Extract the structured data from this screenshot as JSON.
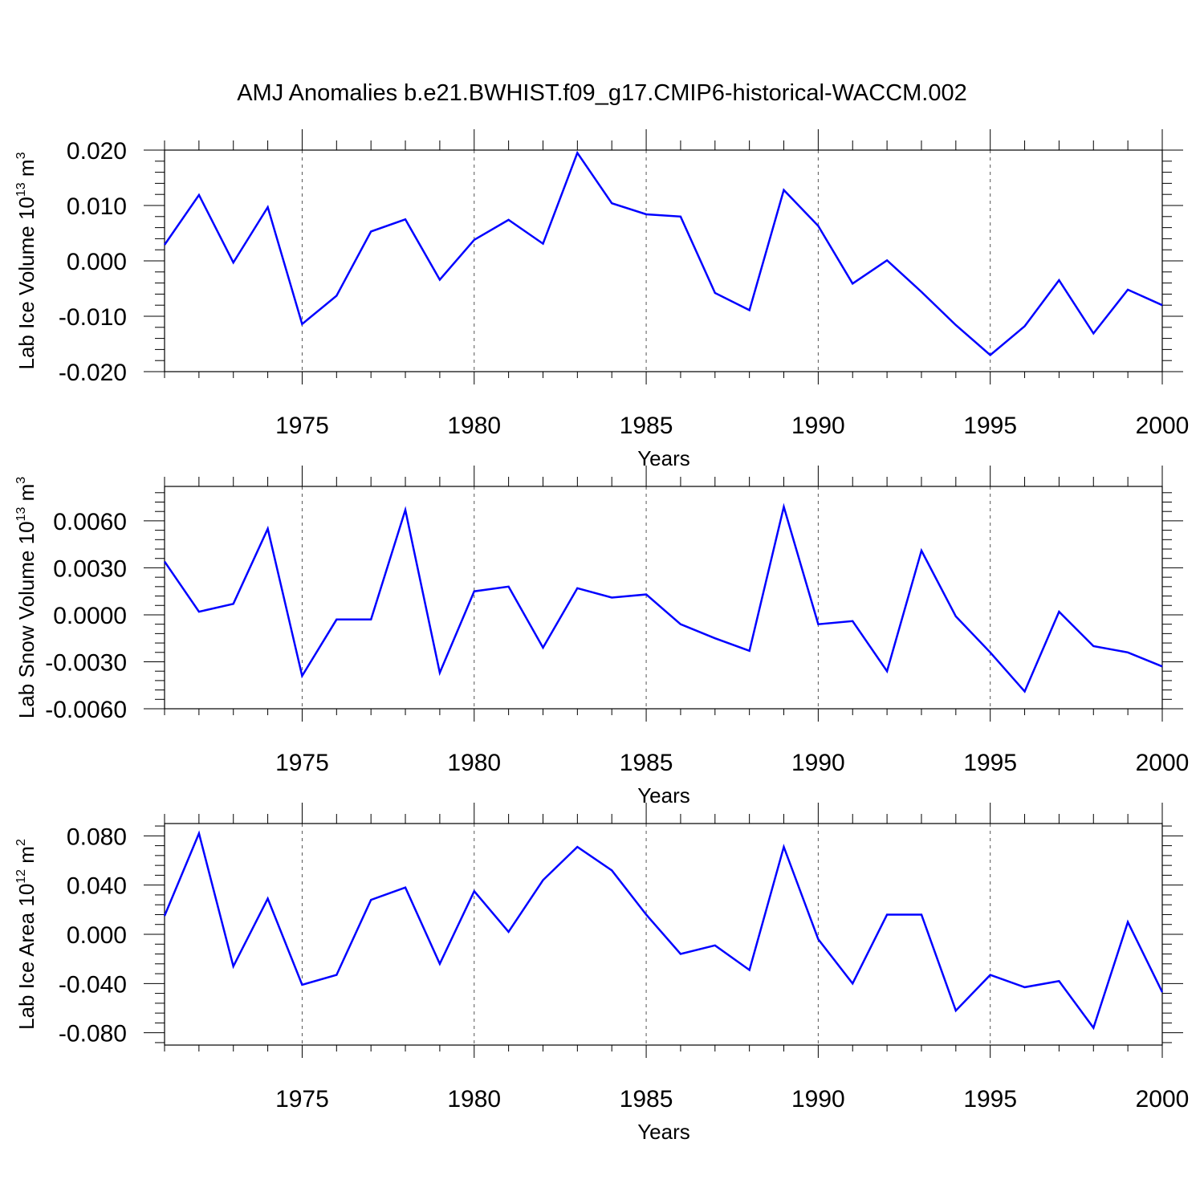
{
  "title": "AMJ Anomalies b.e21.BWHIST.f09_g17.CMIP6-historical-WACCM.002",
  "colors": {
    "line": "#0000ff",
    "frame": "#000000",
    "grid": "#555555"
  },
  "chart_data": [
    {
      "type": "line",
      "ylabel": {
        "base": "Lab Ice Volume 10",
        "exponent": "13",
        "unit": " m",
        "unit_exponent": "3"
      },
      "xlabel": "Years",
      "xlim": [
        1971,
        2000
      ],
      "ylim": [
        -0.02,
        0.02
      ],
      "yticks": [
        "0.020",
        "0.010",
        "0.000",
        "-0.010",
        "-0.020"
      ],
      "ytick_values": [
        0.02,
        0.01,
        0.0,
        -0.01,
        -0.02
      ],
      "xticks": [
        "1975",
        "1980",
        "1985",
        "1990",
        "1995",
        "2000"
      ],
      "xtick_values": [
        1975,
        1980,
        1985,
        1990,
        1995,
        2000
      ],
      "grid": "vertical dashed at 5-year ticks",
      "x": [
        1971,
        1972,
        1973,
        1974,
        1975,
        1976,
        1977,
        1978,
        1979,
        1980,
        1981,
        1982,
        1983,
        1984,
        1985,
        1986,
        1987,
        1988,
        1989,
        1990,
        1991,
        1992,
        1993,
        1994,
        1995,
        1996,
        1997,
        1998,
        1999,
        2000
      ],
      "values": [
        0.0029,
        0.0119,
        -0.0003,
        0.0097,
        -0.0114,
        -0.0063,
        0.0053,
        0.0075,
        -0.0034,
        0.0038,
        0.0074,
        0.0031,
        0.0195,
        0.0104,
        0.0084,
        0.008,
        -0.0058,
        -0.0089,
        0.0128,
        0.0063,
        -0.0041,
        0.0001,
        -0.0056,
        -0.0116,
        -0.017,
        -0.0118,
        -0.0035,
        -0.0131,
        -0.0052,
        -0.008
      ]
    },
    {
      "type": "line",
      "ylabel": {
        "base": "Lab Snow Volume 10",
        "exponent": "13",
        "unit": " m",
        "unit_exponent": "3"
      },
      "xlabel": "Years",
      "xlim": [
        1971,
        2000
      ],
      "ylim": [
        -0.006,
        0.0082
      ],
      "yticks": [
        "0.0060",
        "0.0030",
        "0.0000",
        "-0.0030",
        "-0.0060"
      ],
      "ytick_values": [
        0.006,
        0.003,
        0.0,
        -0.003,
        -0.006
      ],
      "xticks": [
        "1975",
        "1980",
        "1985",
        "1990",
        "1995",
        "2000"
      ],
      "xtick_values": [
        1975,
        1980,
        1985,
        1990,
        1995,
        2000
      ],
      "grid": "vertical dashed at 5-year ticks",
      "x": [
        1971,
        1972,
        1973,
        1974,
        1975,
        1976,
        1977,
        1978,
        1979,
        1980,
        1981,
        1982,
        1983,
        1984,
        1985,
        1986,
        1987,
        1988,
        1989,
        1990,
        1991,
        1992,
        1993,
        1994,
        1995,
        1996,
        1997,
        1998,
        1999,
        2000
      ],
      "values": [
        0.0034,
        0.0002,
        0.0007,
        0.0055,
        -0.0039,
        -0.0003,
        -0.0003,
        0.0067,
        -0.0037,
        0.0015,
        0.0018,
        -0.0021,
        0.0017,
        0.0011,
        0.0013,
        -0.0006,
        -0.0015,
        -0.0023,
        0.0069,
        -0.0006,
        -0.0004,
        -0.0036,
        0.0041,
        -0.0001,
        -0.0024,
        -0.0049,
        0.0002,
        -0.002,
        -0.0024,
        -0.0033
      ]
    },
    {
      "type": "line",
      "ylabel": {
        "base": "Lab Ice Area 10",
        "exponent": "12",
        "unit": " m",
        "unit_exponent": "2"
      },
      "xlabel": "Years",
      "xlim": [
        1971,
        2000
      ],
      "ylim": [
        -0.09,
        0.09
      ],
      "yticks": [
        "0.080",
        "0.040",
        "0.000",
        "-0.040",
        "-0.080"
      ],
      "ytick_values": [
        0.08,
        0.04,
        0.0,
        -0.04,
        -0.08
      ],
      "xticks": [
        "1975",
        "1980",
        "1985",
        "1990",
        "1995",
        "2000"
      ],
      "xtick_values": [
        1975,
        1980,
        1985,
        1990,
        1995,
        2000
      ],
      "grid": "vertical dashed at 5-year ticks",
      "x": [
        1971,
        1972,
        1973,
        1974,
        1975,
        1976,
        1977,
        1978,
        1979,
        1980,
        1981,
        1982,
        1983,
        1984,
        1985,
        1986,
        1987,
        1988,
        1989,
        1990,
        1991,
        1992,
        1993,
        1994,
        1995,
        1996,
        1997,
        1998,
        1999,
        2000
      ],
      "values": [
        0.015,
        0.082,
        -0.026,
        0.029,
        -0.041,
        -0.033,
        0.028,
        0.038,
        -0.024,
        0.035,
        0.002,
        0.044,
        0.071,
        0.052,
        0.016,
        -0.016,
        -0.009,
        -0.029,
        0.071,
        -0.004,
        -0.04,
        0.016,
        0.016,
        -0.062,
        -0.033,
        -0.043,
        -0.038,
        -0.076,
        0.01,
        -0.047
      ]
    }
  ]
}
